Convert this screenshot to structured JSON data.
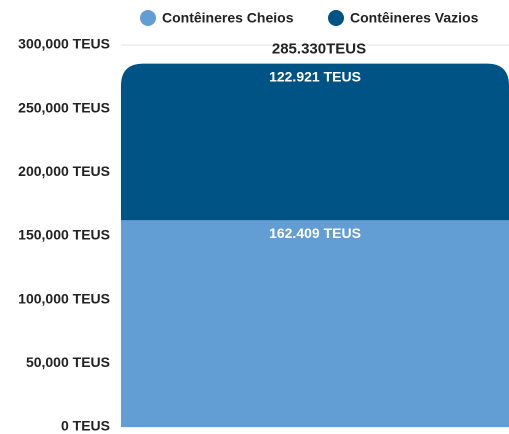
{
  "chart_data": {
    "type": "stacked_bar",
    "categories": [
      null
    ],
    "series": [
      {
        "name": "Contêineres Cheios",
        "color": "#629dd4",
        "values": [
          162409
        ],
        "value_labels": [
          "162.409 TEUS"
        ]
      },
      {
        "name": "Contêineres Vazios",
        "color": "#005385",
        "values": [
          122921
        ],
        "value_labels": [
          "122.921 TEUS"
        ]
      }
    ],
    "annotations": [
      "285.330TEUS"
    ],
    "ylim": [
      0,
      300000
    ],
    "yticks": [
      {
        "value": 0,
        "label": "0 TEUS"
      },
      {
        "value": 50000,
        "label": "50,000 TEUS"
      },
      {
        "value": 100000,
        "label": "100,000 TEUS"
      },
      {
        "value": 150000,
        "label": "150,000 TEUS"
      },
      {
        "value": 200000,
        "label": "200,000 TEUS"
      },
      {
        "value": 250000,
        "label": "250,000 TEUS"
      },
      {
        "value": 300000,
        "label": "300,000 TEUS"
      }
    ],
    "grid": true,
    "legend": "top"
  }
}
